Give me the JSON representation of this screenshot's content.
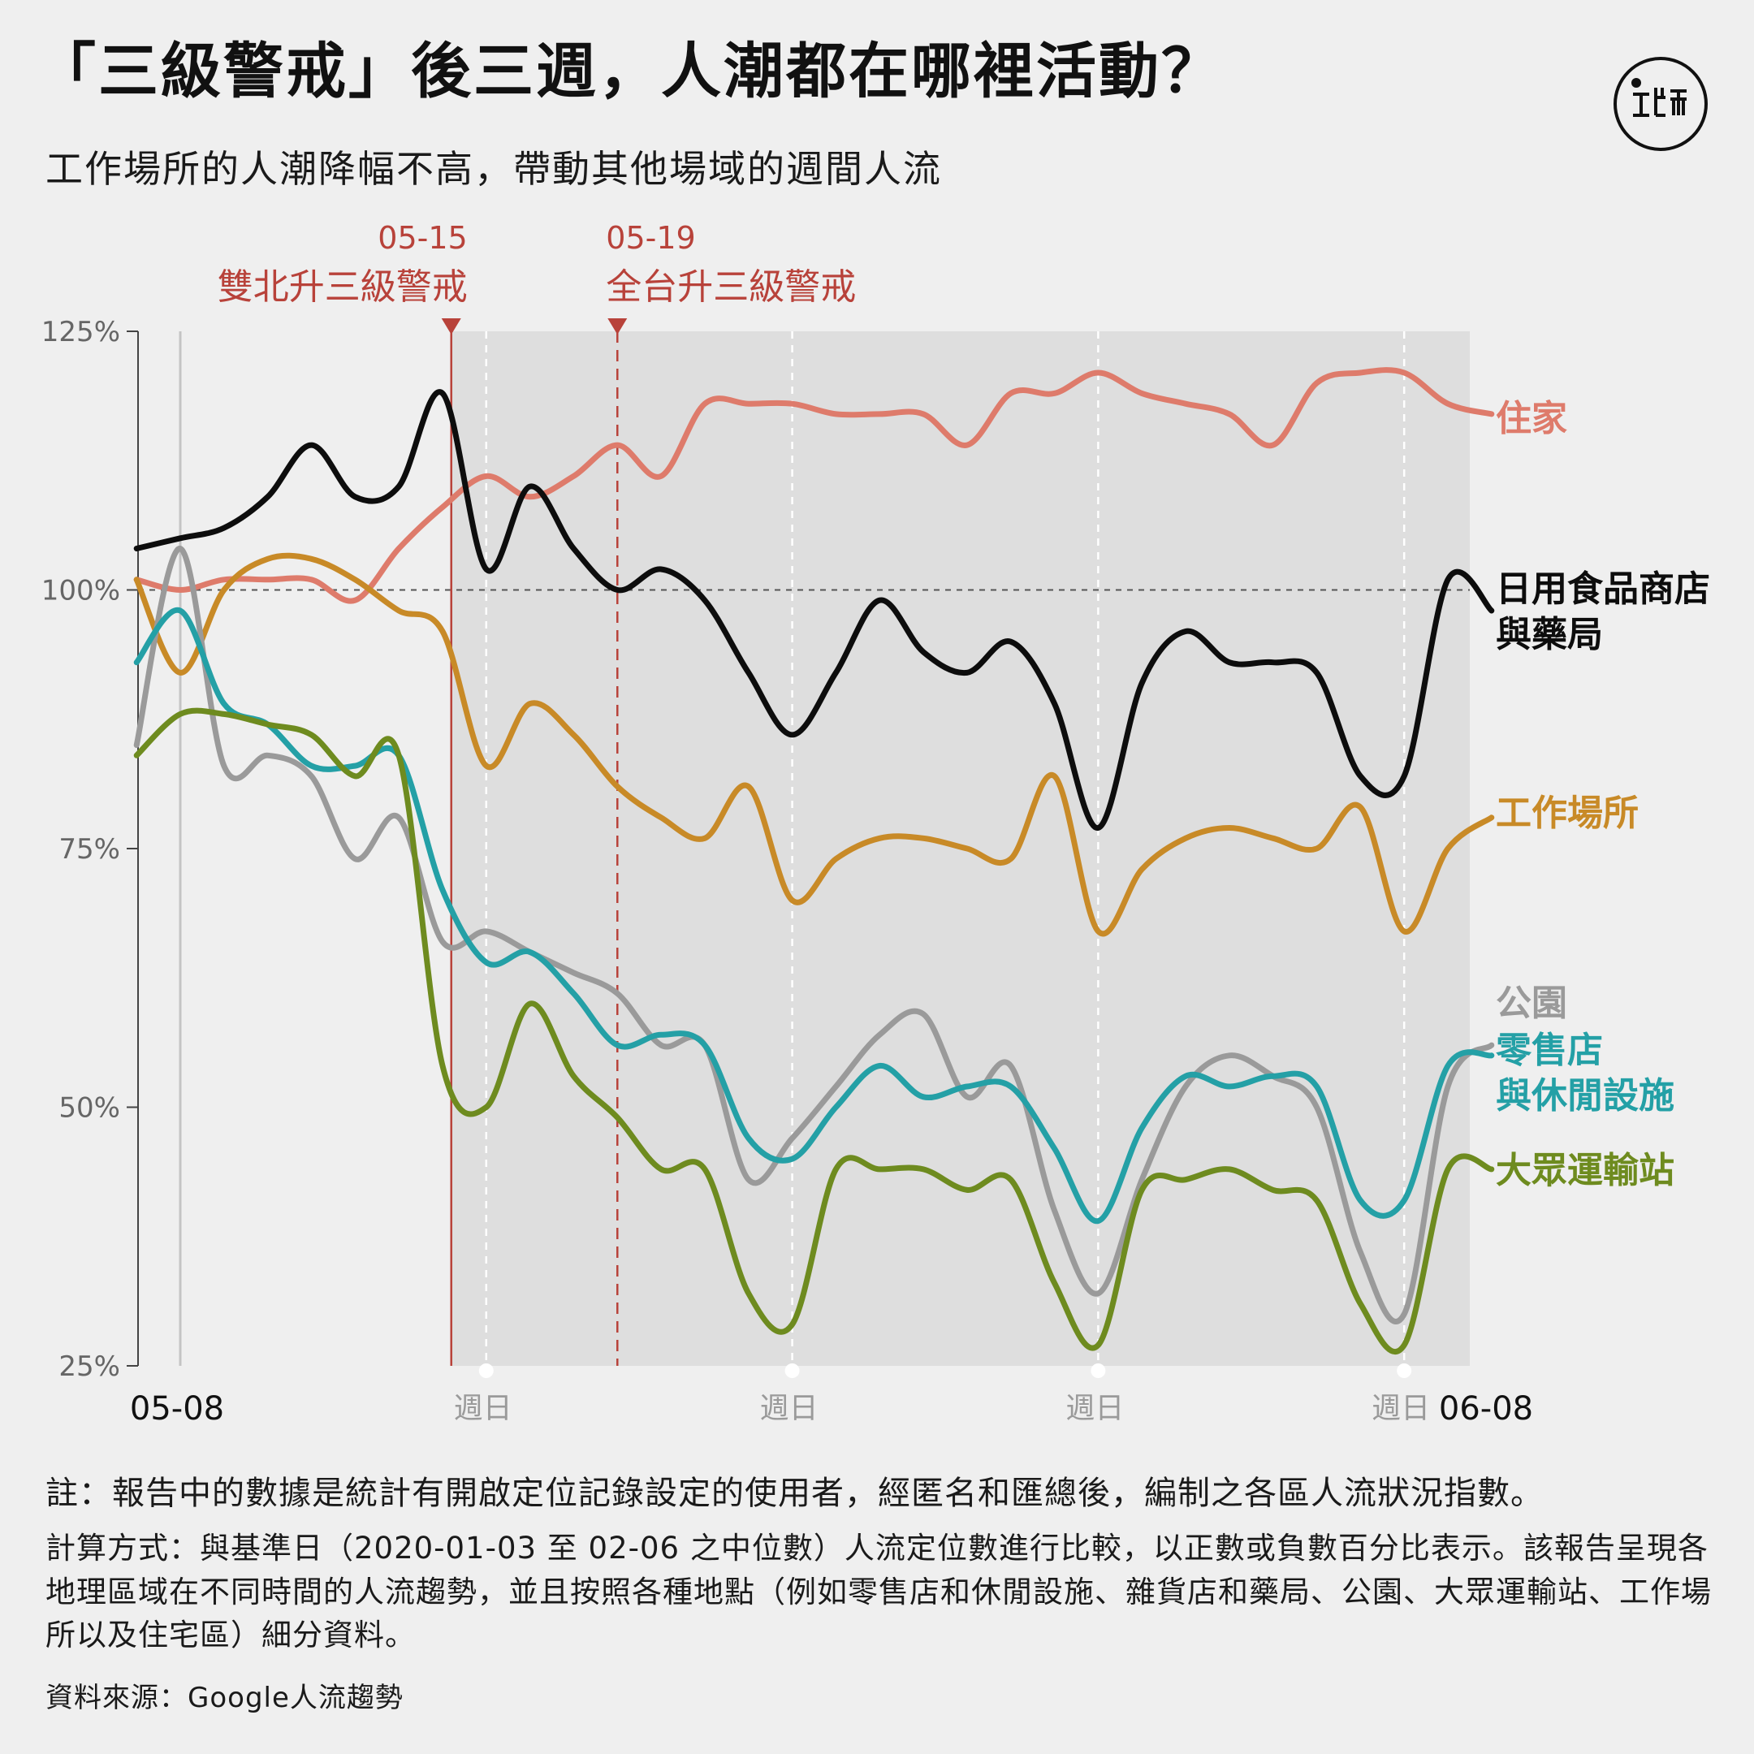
{
  "header": {
    "title": "「三級警戒」後三週，人潮都在哪裡活動？",
    "subtitle": "工作場所的人潮降幅不高，帶動其他場域的週間人流"
  },
  "logo": {
    "icon": "initium-logo-icon"
  },
  "chart_data": {
    "type": "line",
    "x_start_label": "05-08",
    "x_end_label": "06-08",
    "yaxis": {
      "ticks": [
        25,
        50,
        75,
        100,
        125
      ],
      "tick_labels": [
        "25%",
        "50%",
        "75%",
        "100%",
        "125%"
      ],
      "ylim": [
        25,
        125
      ],
      "baseline": 100
    },
    "sunday_label": "週日",
    "sundays_day_index": [
      7,
      14,
      21,
      28
    ],
    "shaded_from_day_index": 6.2,
    "events": [
      {
        "date": "05-15",
        "label": "雙北升三級警戒",
        "day_index": 6.2,
        "color": "#b8423a",
        "style": "solid"
      },
      {
        "date": "05-19",
        "label": "全台升三級警戒",
        "day_index": 10,
        "color": "#b8423a",
        "style": "dashed"
      }
    ],
    "x_day_range": [
      -1,
      30
    ],
    "series": [
      {
        "name": "住家",
        "color": "#de7b6b",
        "values": [
          101,
          100,
          101,
          101,
          101,
          99,
          104,
          108,
          111,
          109,
          111,
          114,
          111,
          118,
          118,
          118,
          117,
          117,
          117,
          114,
          119,
          119,
          121,
          119,
          118,
          117,
          114,
          120,
          121,
          121,
          118,
          117
        ]
      },
      {
        "name": "日用食品商店\n與藥局",
        "color": "#0d0d0d",
        "values": [
          104,
          105,
          106,
          109,
          114,
          109,
          110,
          119,
          102,
          110,
          104,
          100,
          102,
          99,
          92,
          86,
          92,
          99,
          94,
          92,
          95,
          89,
          77,
          91,
          96,
          93,
          93,
          92,
          82,
          82,
          101,
          98
        ]
      },
      {
        "name": "工作場所",
        "color": "#c88a27",
        "values": [
          101,
          92,
          100,
          103,
          103,
          101,
          98,
          96,
          83,
          89,
          86,
          81,
          78,
          76,
          81,
          70,
          74,
          76,
          76,
          75,
          74,
          82,
          67,
          73,
          76,
          77,
          76,
          75,
          79,
          67,
          75,
          78
        ]
      },
      {
        "name": "公園",
        "color": "#9a9a9a",
        "values": [
          85,
          104,
          83,
          84,
          82,
          74,
          78,
          66,
          67,
          65,
          63,
          61,
          56,
          56,
          43,
          47,
          52,
          57,
          59,
          51,
          54,
          40,
          32,
          43,
          52,
          55,
          53,
          50,
          36,
          30,
          52,
          56
        ]
      },
      {
        "name": "零售店\n與休閒設施",
        "color": "#24a0a6",
        "values": [
          93,
          98,
          89,
          87,
          83,
          83,
          84,
          71,
          64,
          65,
          61,
          56,
          57,
          56,
          47,
          45,
          50,
          54,
          51,
          52,
          52,
          46,
          39,
          48,
          53,
          52,
          53,
          52,
          41,
          41,
          54,
          55
        ]
      },
      {
        "name": "大眾運輸站",
        "color": "#6e8b1f",
        "values": [
          84,
          88,
          88,
          87,
          86,
          82,
          84,
          54,
          50,
          60,
          53,
          49,
          44,
          44,
          32,
          29,
          44,
          44,
          44,
          42,
          43,
          33,
          27,
          42,
          43,
          44,
          42,
          41,
          31,
          27,
          44,
          44
        ]
      }
    ],
    "label_order_note": ""
  },
  "notes": {
    "note1": "註：報告中的數據是統計有開啟定位記錄設定的使用者，經匿名和匯總後，編制之各區人流狀況指數。",
    "note2": "計算方式：與基準日（2020-01-03 至 02-06 之中位數）人流定位數進行比較，以正數或負數百分比表示。該報告呈現各地理區域在不同時間的人流趨勢，並且按照各種地點（例如零售店和休閒設施、雜貨店和藥局、公園、大眾運輸站、工作場所以及住宅區）細分資料。",
    "source": "資料來源：Google人流趨勢"
  }
}
